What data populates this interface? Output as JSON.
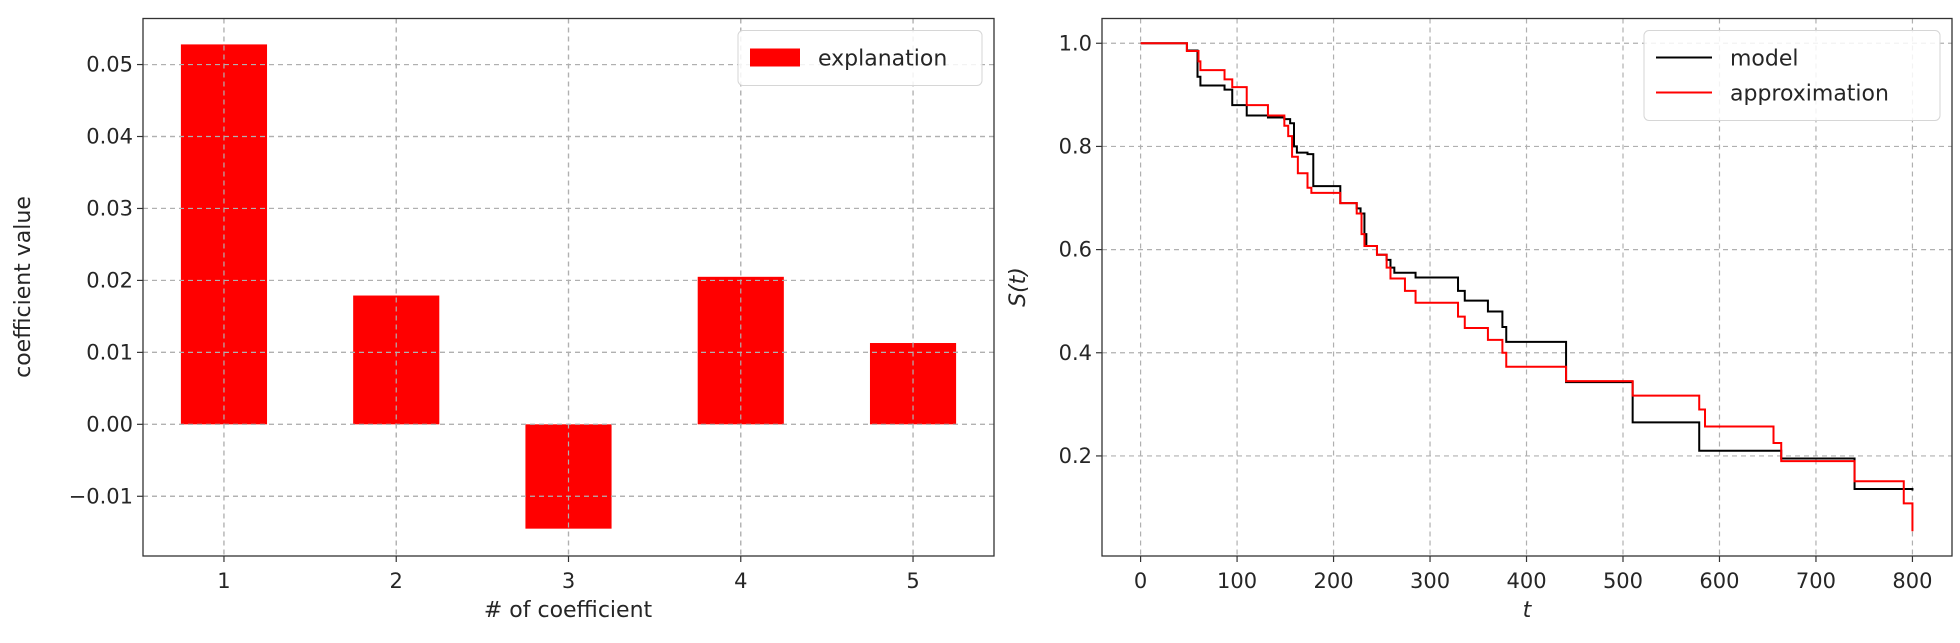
{
  "chart_data": [
    {
      "type": "bar",
      "title": "",
      "xlabel": "# of coefficient",
      "ylabel": "coefficient value",
      "categories": [
        1,
        2,
        3,
        4,
        5
      ],
      "values": [
        0.0528,
        0.0179,
        -0.0145,
        0.0205,
        0.0113
      ],
      "bar_width": 0.5,
      "xlim": [
        0.53,
        5.47
      ],
      "ylim": [
        -0.0183,
        0.0564
      ],
      "xticks": [
        1,
        2,
        3,
        4,
        5
      ],
      "xtick_labels": [
        "1",
        "2",
        "3",
        "4",
        "5"
      ],
      "yticks": [
        -0.01,
        0.0,
        0.01,
        0.02,
        0.03,
        0.04,
        0.05
      ],
      "ytick_labels": [
        "−0.01",
        "0.00",
        "0.01",
        "0.02",
        "0.03",
        "0.04",
        "0.05"
      ],
      "grid": true,
      "legend": {
        "placement": "top-right",
        "entries": [
          {
            "label": "explanation",
            "color": "#ff0000"
          }
        ]
      },
      "color": "#ff0000"
    },
    {
      "type": "line",
      "step": true,
      "title": "",
      "xlabel": "t",
      "ylabel": "S(t)",
      "xlim": [
        -40,
        841
      ],
      "ylim": [
        0.006,
        1.048
      ],
      "xticks": [
        0,
        100,
        200,
        300,
        400,
        500,
        600,
        700,
        800
      ],
      "xtick_labels": [
        "0",
        "100",
        "200",
        "300",
        "400",
        "500",
        "600",
        "700",
        "800"
      ],
      "yticks": [
        0.2,
        0.4,
        0.6,
        0.8,
        1.0
      ],
      "ytick_labels": [
        "0.2",
        "0.4",
        "0.6",
        "0.8",
        "1.0"
      ],
      "grid": true,
      "legend": {
        "placement": "top-right",
        "entries": [
          {
            "label": "model",
            "color": "#000000"
          },
          {
            "label": "approximation",
            "color": "#ff0000"
          }
        ]
      },
      "series": [
        {
          "name": "model",
          "color": "#000000",
          "x": [
            0,
            48,
            59,
            62,
            87,
            95,
            110,
            132,
            149,
            155,
            159,
            162,
            173,
            179,
            207,
            224,
            228,
            232,
            234,
            245,
            255,
            259,
            263,
            285,
            329,
            336,
            360,
            375,
            379,
            441,
            510,
            579,
            664,
            740,
            800
          ],
          "y": [
            1.0,
            0.986,
            0.935,
            0.918,
            0.91,
            0.88,
            0.86,
            0.856,
            0.853,
            0.845,
            0.8,
            0.788,
            0.785,
            0.723,
            0.69,
            0.68,
            0.67,
            0.63,
            0.607,
            0.59,
            0.58,
            0.565,
            0.555,
            0.546,
            0.52,
            0.501,
            0.48,
            0.45,
            0.421,
            0.343,
            0.265,
            0.21,
            0.195,
            0.136,
            0.133
          ]
        },
        {
          "name": "approximation",
          "color": "#ff0000",
          "x": [
            0,
            48,
            60,
            62,
            87,
            95,
            110,
            132,
            149,
            153,
            157,
            163,
            173,
            177,
            207,
            224,
            229,
            232,
            245,
            255,
            259,
            274,
            285,
            329,
            336,
            360,
            375,
            379,
            441,
            510,
            579,
            585,
            656,
            664,
            740,
            791,
            800
          ],
          "y": [
            1.0,
            0.985,
            0.965,
            0.948,
            0.93,
            0.915,
            0.88,
            0.86,
            0.84,
            0.82,
            0.78,
            0.748,
            0.72,
            0.71,
            0.69,
            0.67,
            0.63,
            0.607,
            0.59,
            0.565,
            0.544,
            0.52,
            0.497,
            0.47,
            0.448,
            0.425,
            0.4,
            0.373,
            0.345,
            0.317,
            0.29,
            0.257,
            0.225,
            0.19,
            0.151,
            0.108,
            0.054
          ]
        }
      ]
    }
  ]
}
